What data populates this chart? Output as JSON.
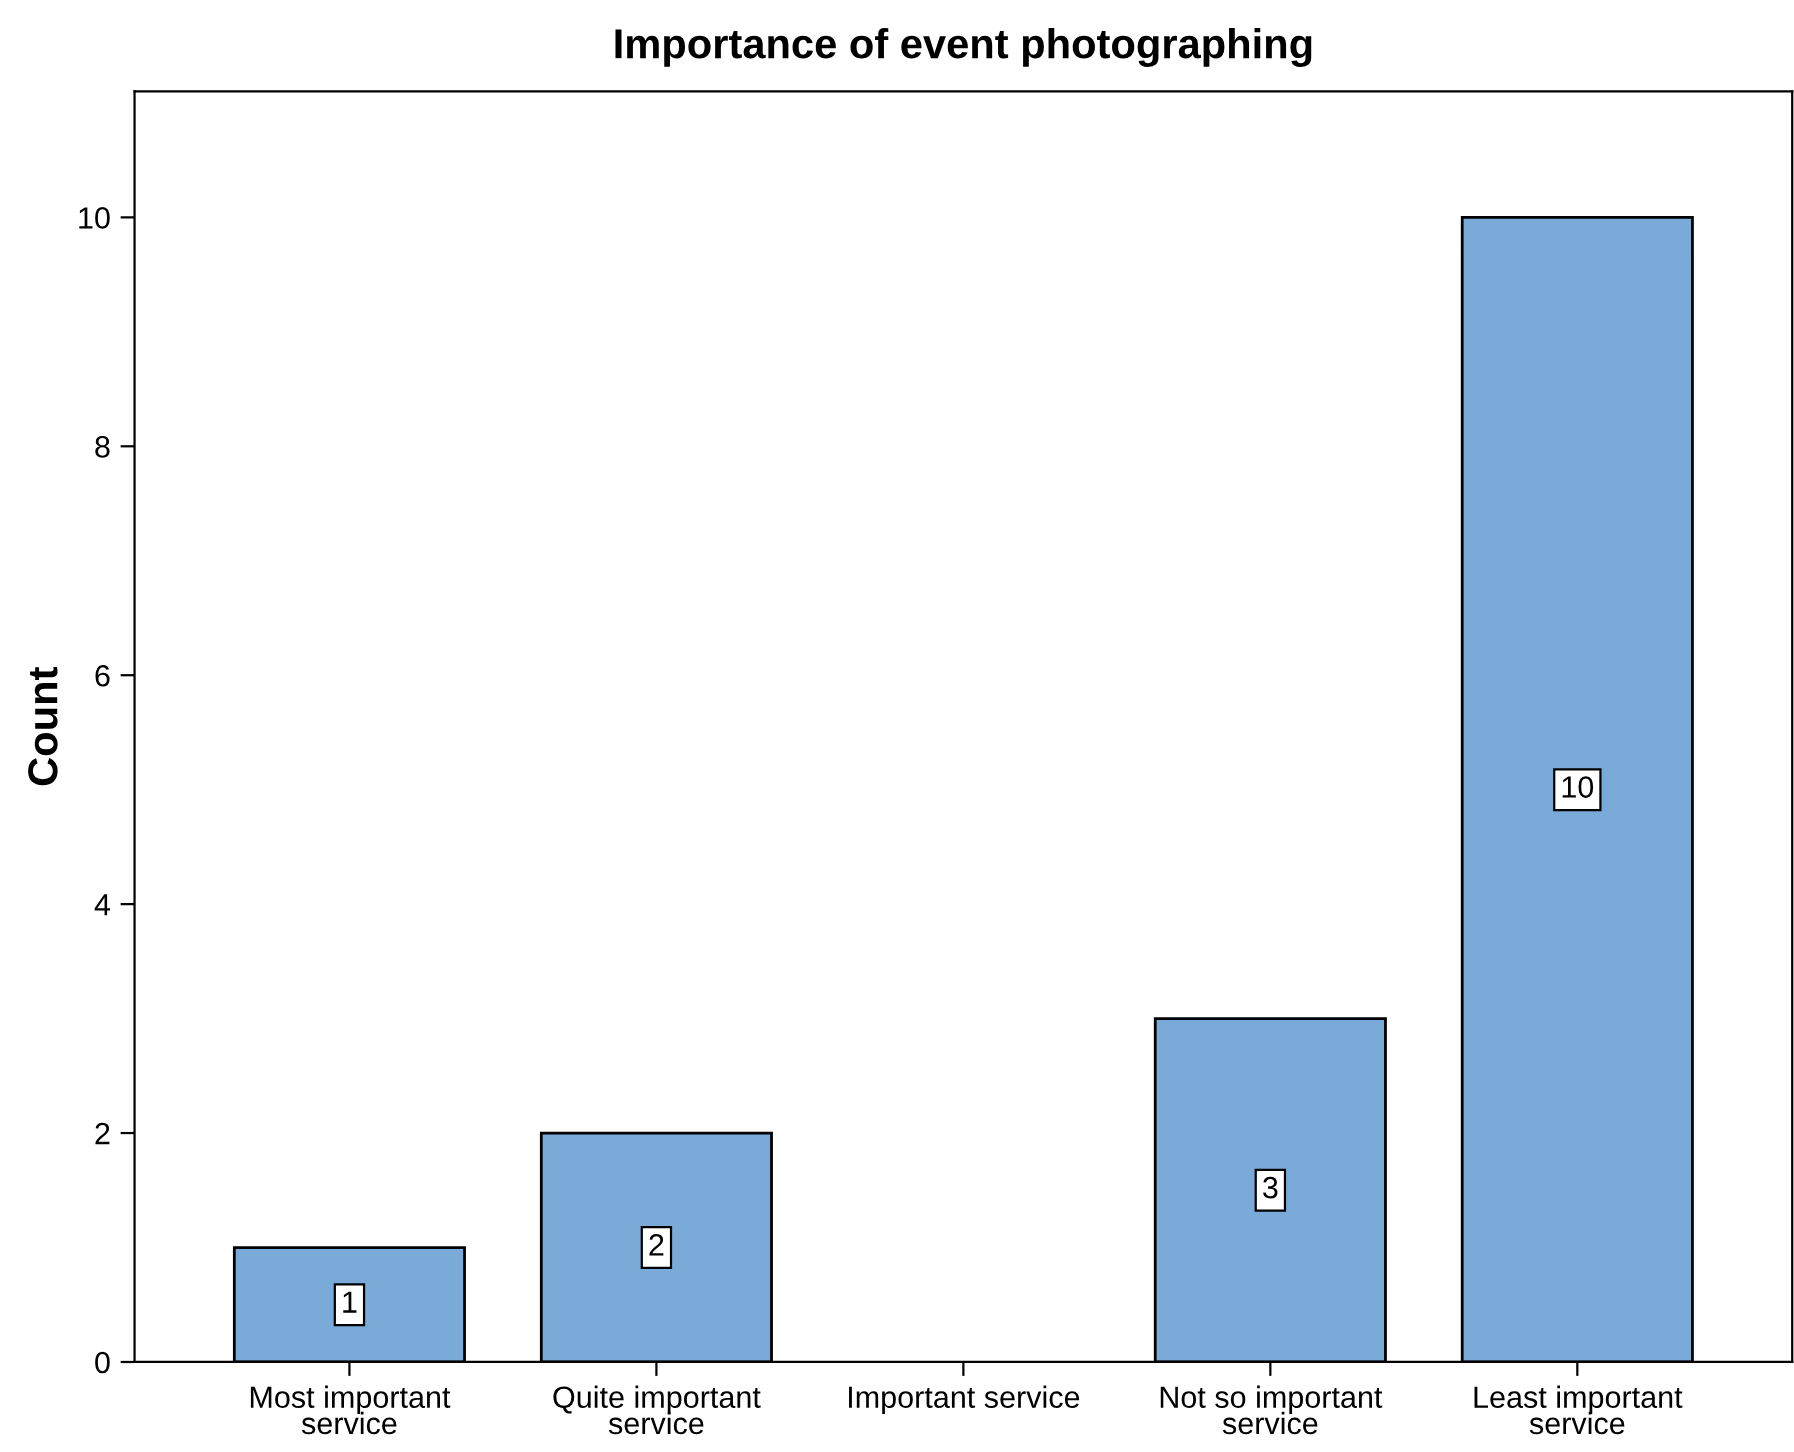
{
  "chart_data": {
    "type": "bar",
    "title": "Importance of event photographing",
    "ylabel": "Count",
    "categories": [
      "Most important\nservice",
      "Quite important\nservice",
      "Important service",
      "Not so important\nservice",
      "Least important\nservice"
    ],
    "values": [
      1,
      2,
      0,
      3,
      10
    ],
    "value_labels": [
      "1",
      "2",
      null,
      "3",
      "10"
    ],
    "color": "#7aaad7",
    "ylim": [
      0,
      11.1
    ],
    "yticks": [
      0,
      2,
      4,
      6,
      8,
      10
    ],
    "grid": false,
    "legend": false
  }
}
